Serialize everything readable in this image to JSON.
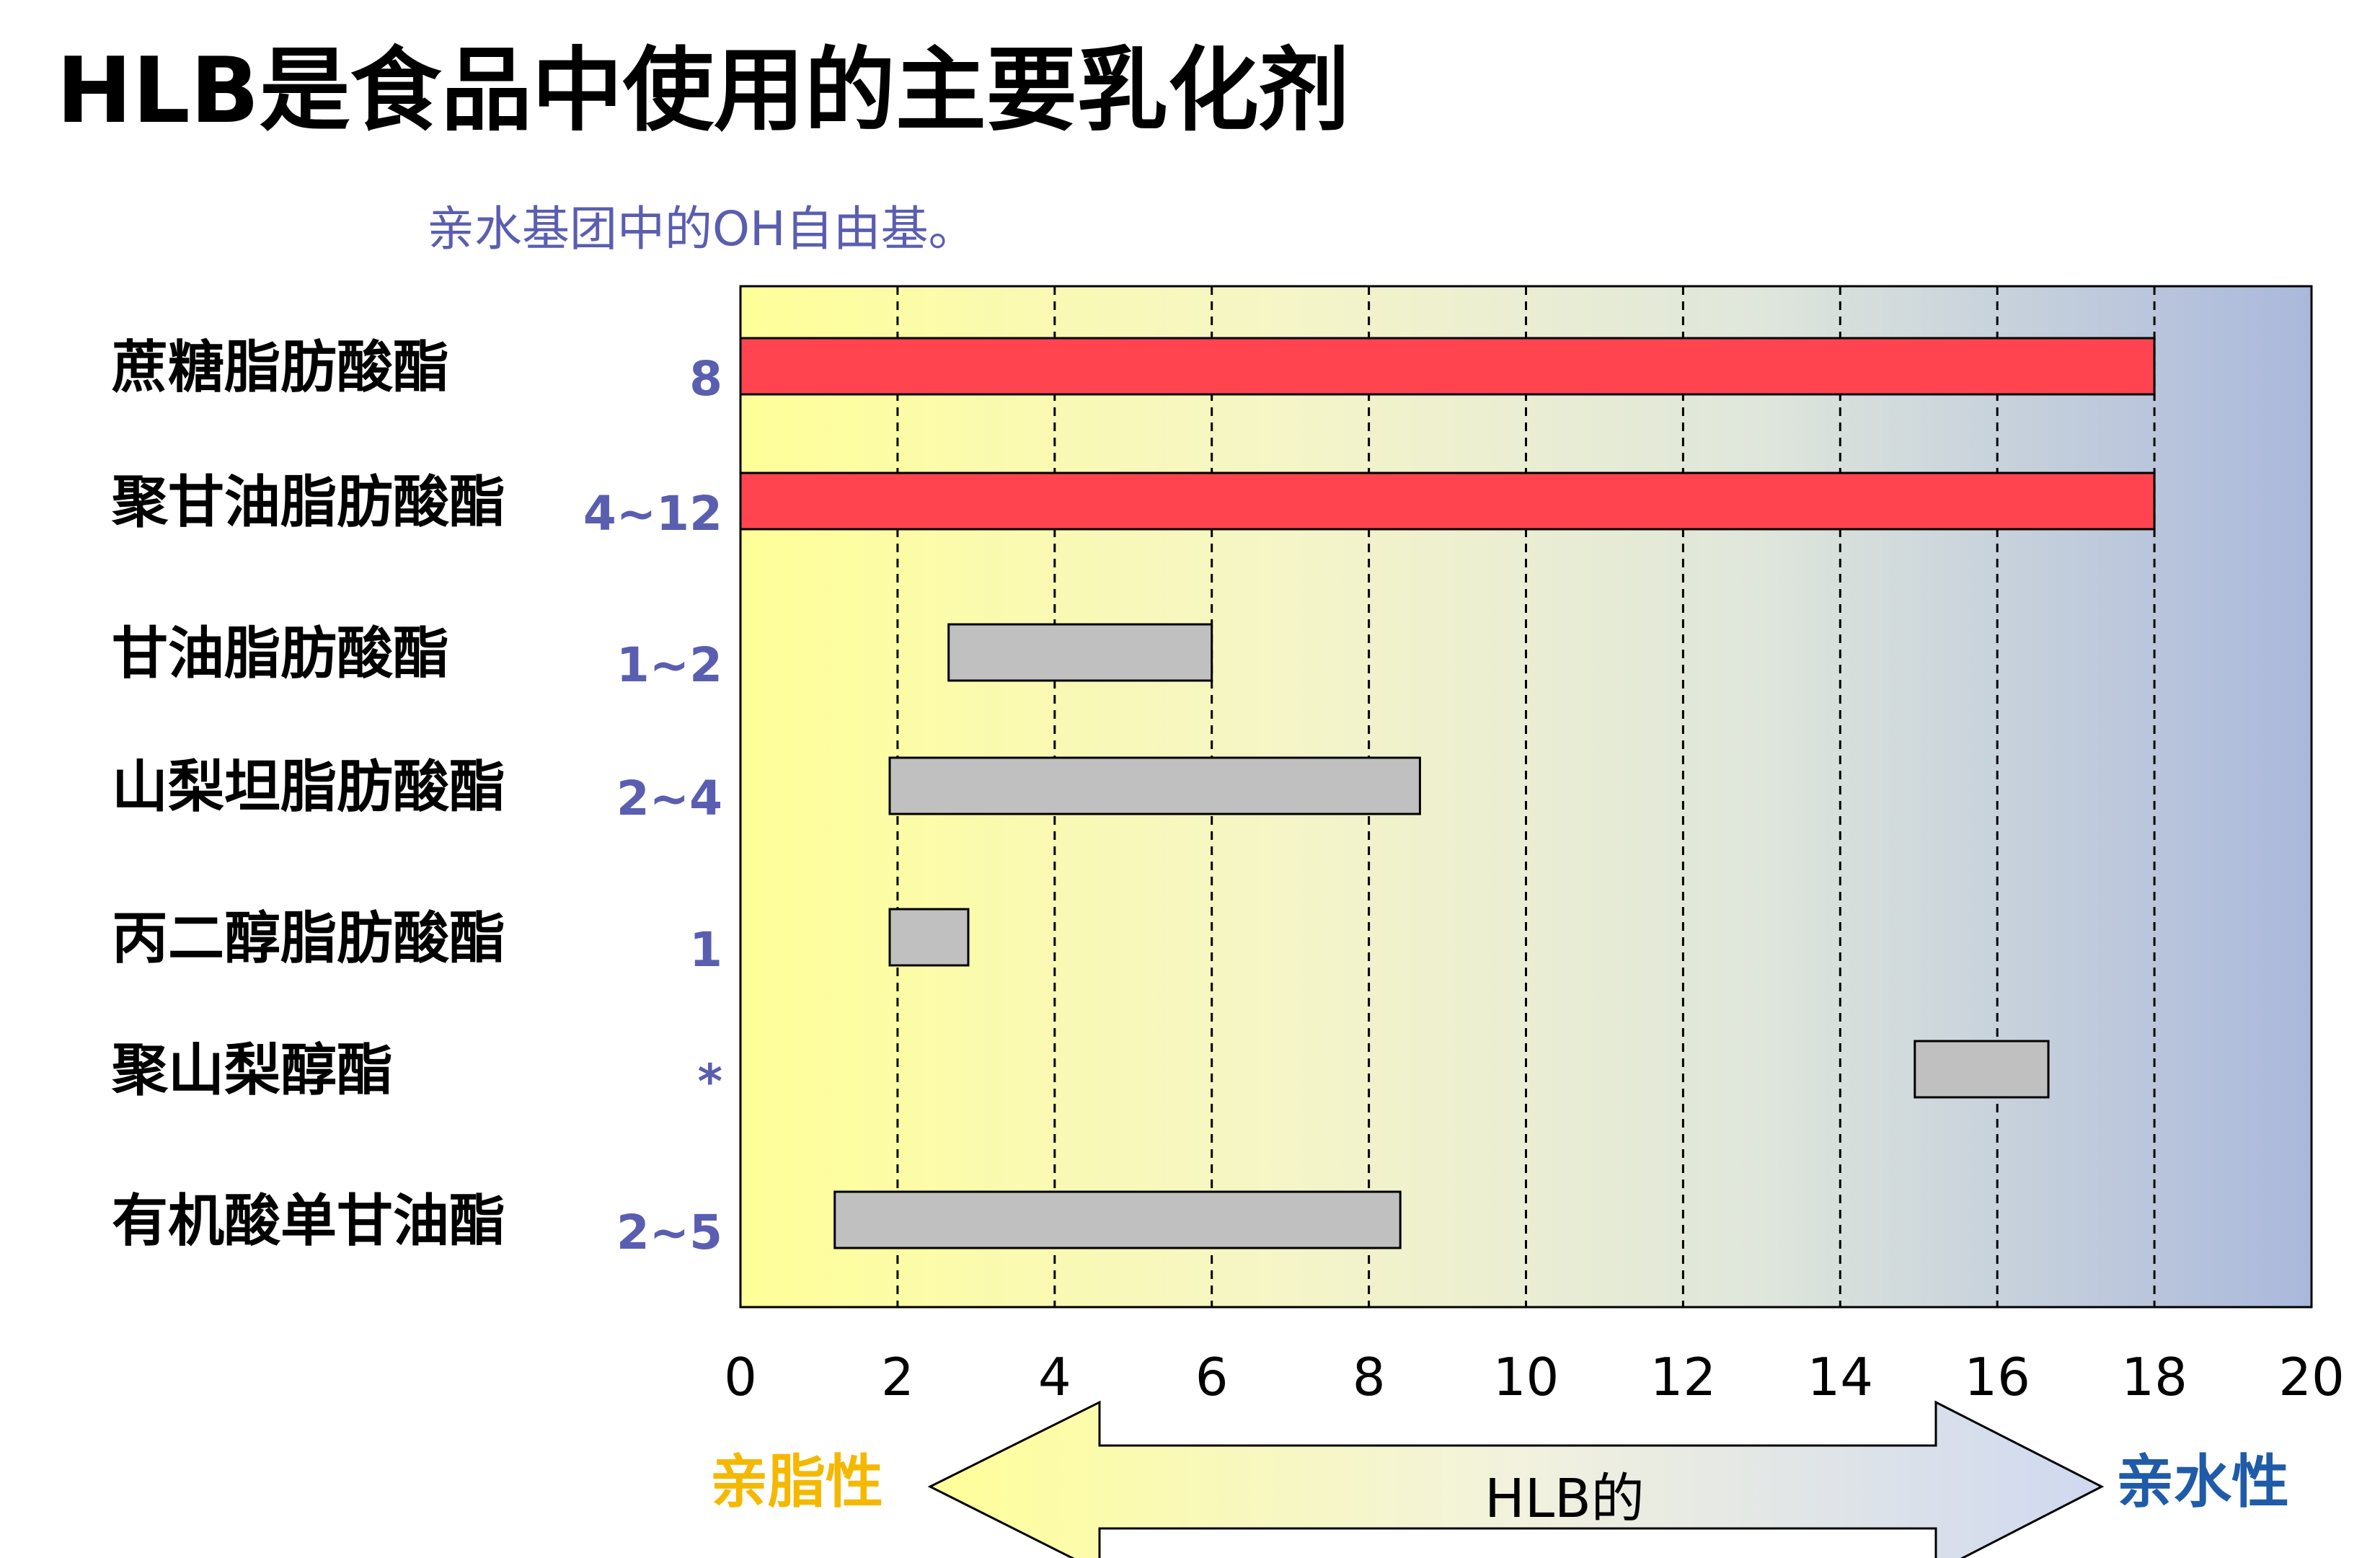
{
  "title": "HLB是食品中使用的主要乳化剂",
  "subtitle": "亲水基团中的OH自由基。",
  "colors": {
    "bar_primary": "#ff4450",
    "bar_secondary": "#c0c0c0",
    "row_label": "#000000",
    "oh_value": "#5a5eb0",
    "lipophilic": "#f5b800",
    "hydrophilic": "#1f5ba8",
    "plot_gradient_start": "#ffff99",
    "plot_gradient_end": "#aab8dc"
  },
  "chart_data": {
    "type": "bar",
    "orientation": "horizontal-range",
    "xlim": [
      0,
      20
    ],
    "xticks": [
      "0",
      "2",
      "4",
      "6",
      "8",
      "10",
      "12",
      "14",
      "16",
      "18",
      "20"
    ],
    "grid": "vertical dashed lines at each even tick",
    "categories": [
      "蔗糖脂肪酸酯",
      "聚甘油脂肪酸酯",
      "甘油脂肪酸酯",
      "山梨坦脂肪酸酯",
      "丙二醇脂肪酸酯",
      "聚山梨醇酯",
      "有机酸单甘油酯"
    ],
    "oh_values": [
      "8",
      "4~12",
      "1~2",
      "2~4",
      "1",
      "*",
      "2~5"
    ],
    "ranges": [
      {
        "start": 0,
        "end": 18,
        "highlight": true
      },
      {
        "start": 0,
        "end": 18,
        "highlight": true
      },
      {
        "start": 2.65,
        "end": 6.0,
        "highlight": false
      },
      {
        "start": 1.9,
        "end": 8.65,
        "highlight": false
      },
      {
        "start": 1.9,
        "end": 2.9,
        "highlight": false
      },
      {
        "start": 14.95,
        "end": 16.65,
        "highlight": false
      },
      {
        "start": 1.2,
        "end": 8.4,
        "highlight": false
      }
    ],
    "axis_arrow": {
      "label": "HLB的",
      "left_label": "亲脂性",
      "right_label": "亲水性"
    }
  }
}
